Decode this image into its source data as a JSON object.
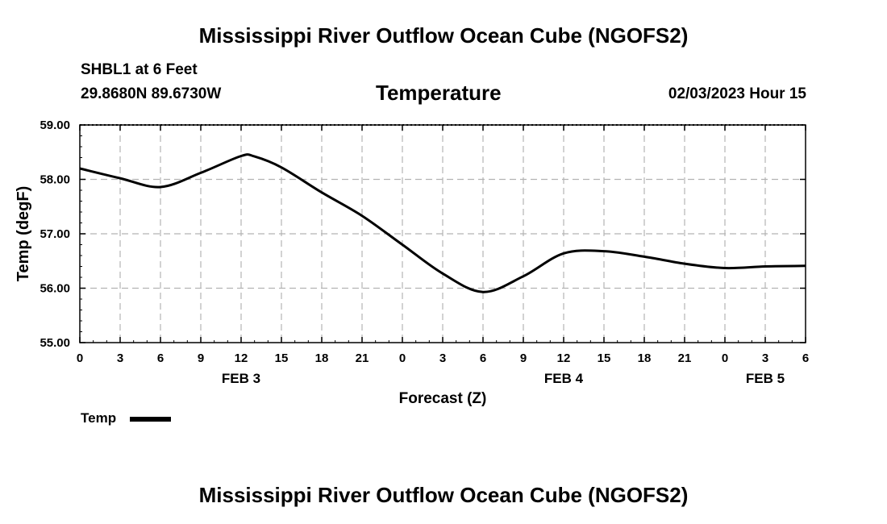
{
  "header": {
    "title": "Mississippi River Outflow Ocean Cube (NGOFS2)",
    "station": "SHBL1 at 6 Feet",
    "coords": "29.8680N  89.6730W",
    "variable": "Temperature",
    "datetime": "02/03/2023 Hour 15"
  },
  "footer": {
    "title": "Mississippi River Outflow Ocean Cube (NGOFS2)"
  },
  "legend": {
    "label": "Temp"
  },
  "chart_data": {
    "type": "line",
    "xlabel": "Forecast (Z)",
    "ylabel": "Temp (degF)",
    "xlim": [
      0,
      54
    ],
    "ylim": [
      55.0,
      59.0
    ],
    "grid": true,
    "x_ticks": [
      0,
      3,
      6,
      9,
      12,
      15,
      18,
      21,
      24,
      27,
      30,
      33,
      36,
      39,
      42,
      45,
      48,
      51,
      54
    ],
    "x_tick_labels": [
      "0",
      "3",
      "6",
      "9",
      "12",
      "15",
      "18",
      "21",
      "0",
      "3",
      "6",
      "9",
      "12",
      "15",
      "18",
      "21",
      "0",
      "3",
      "6"
    ],
    "y_ticks": [
      55.0,
      56.0,
      57.0,
      58.0,
      59.0
    ],
    "y_tick_labels": [
      "55.00",
      "56.00",
      "57.00",
      "58.00",
      "59.00"
    ],
    "day_labels": [
      {
        "x": 12,
        "label": "FEB 3"
      },
      {
        "x": 36,
        "label": "FEB 4"
      },
      {
        "x": 51,
        "label": "FEB 5"
      }
    ],
    "series": [
      {
        "name": "Temp",
        "color": "#000000",
        "x": [
          0,
          3,
          6,
          9,
          12,
          13,
          15,
          18,
          21,
          24,
          27,
          30,
          33,
          36,
          39,
          42,
          45,
          48,
          51,
          54
        ],
        "y": [
          58.2,
          58.02,
          57.86,
          58.12,
          58.43,
          58.42,
          58.22,
          57.76,
          57.33,
          56.8,
          56.27,
          55.93,
          56.22,
          56.64,
          56.68,
          56.58,
          56.45,
          56.37,
          56.4,
          56.41
        ]
      }
    ]
  }
}
